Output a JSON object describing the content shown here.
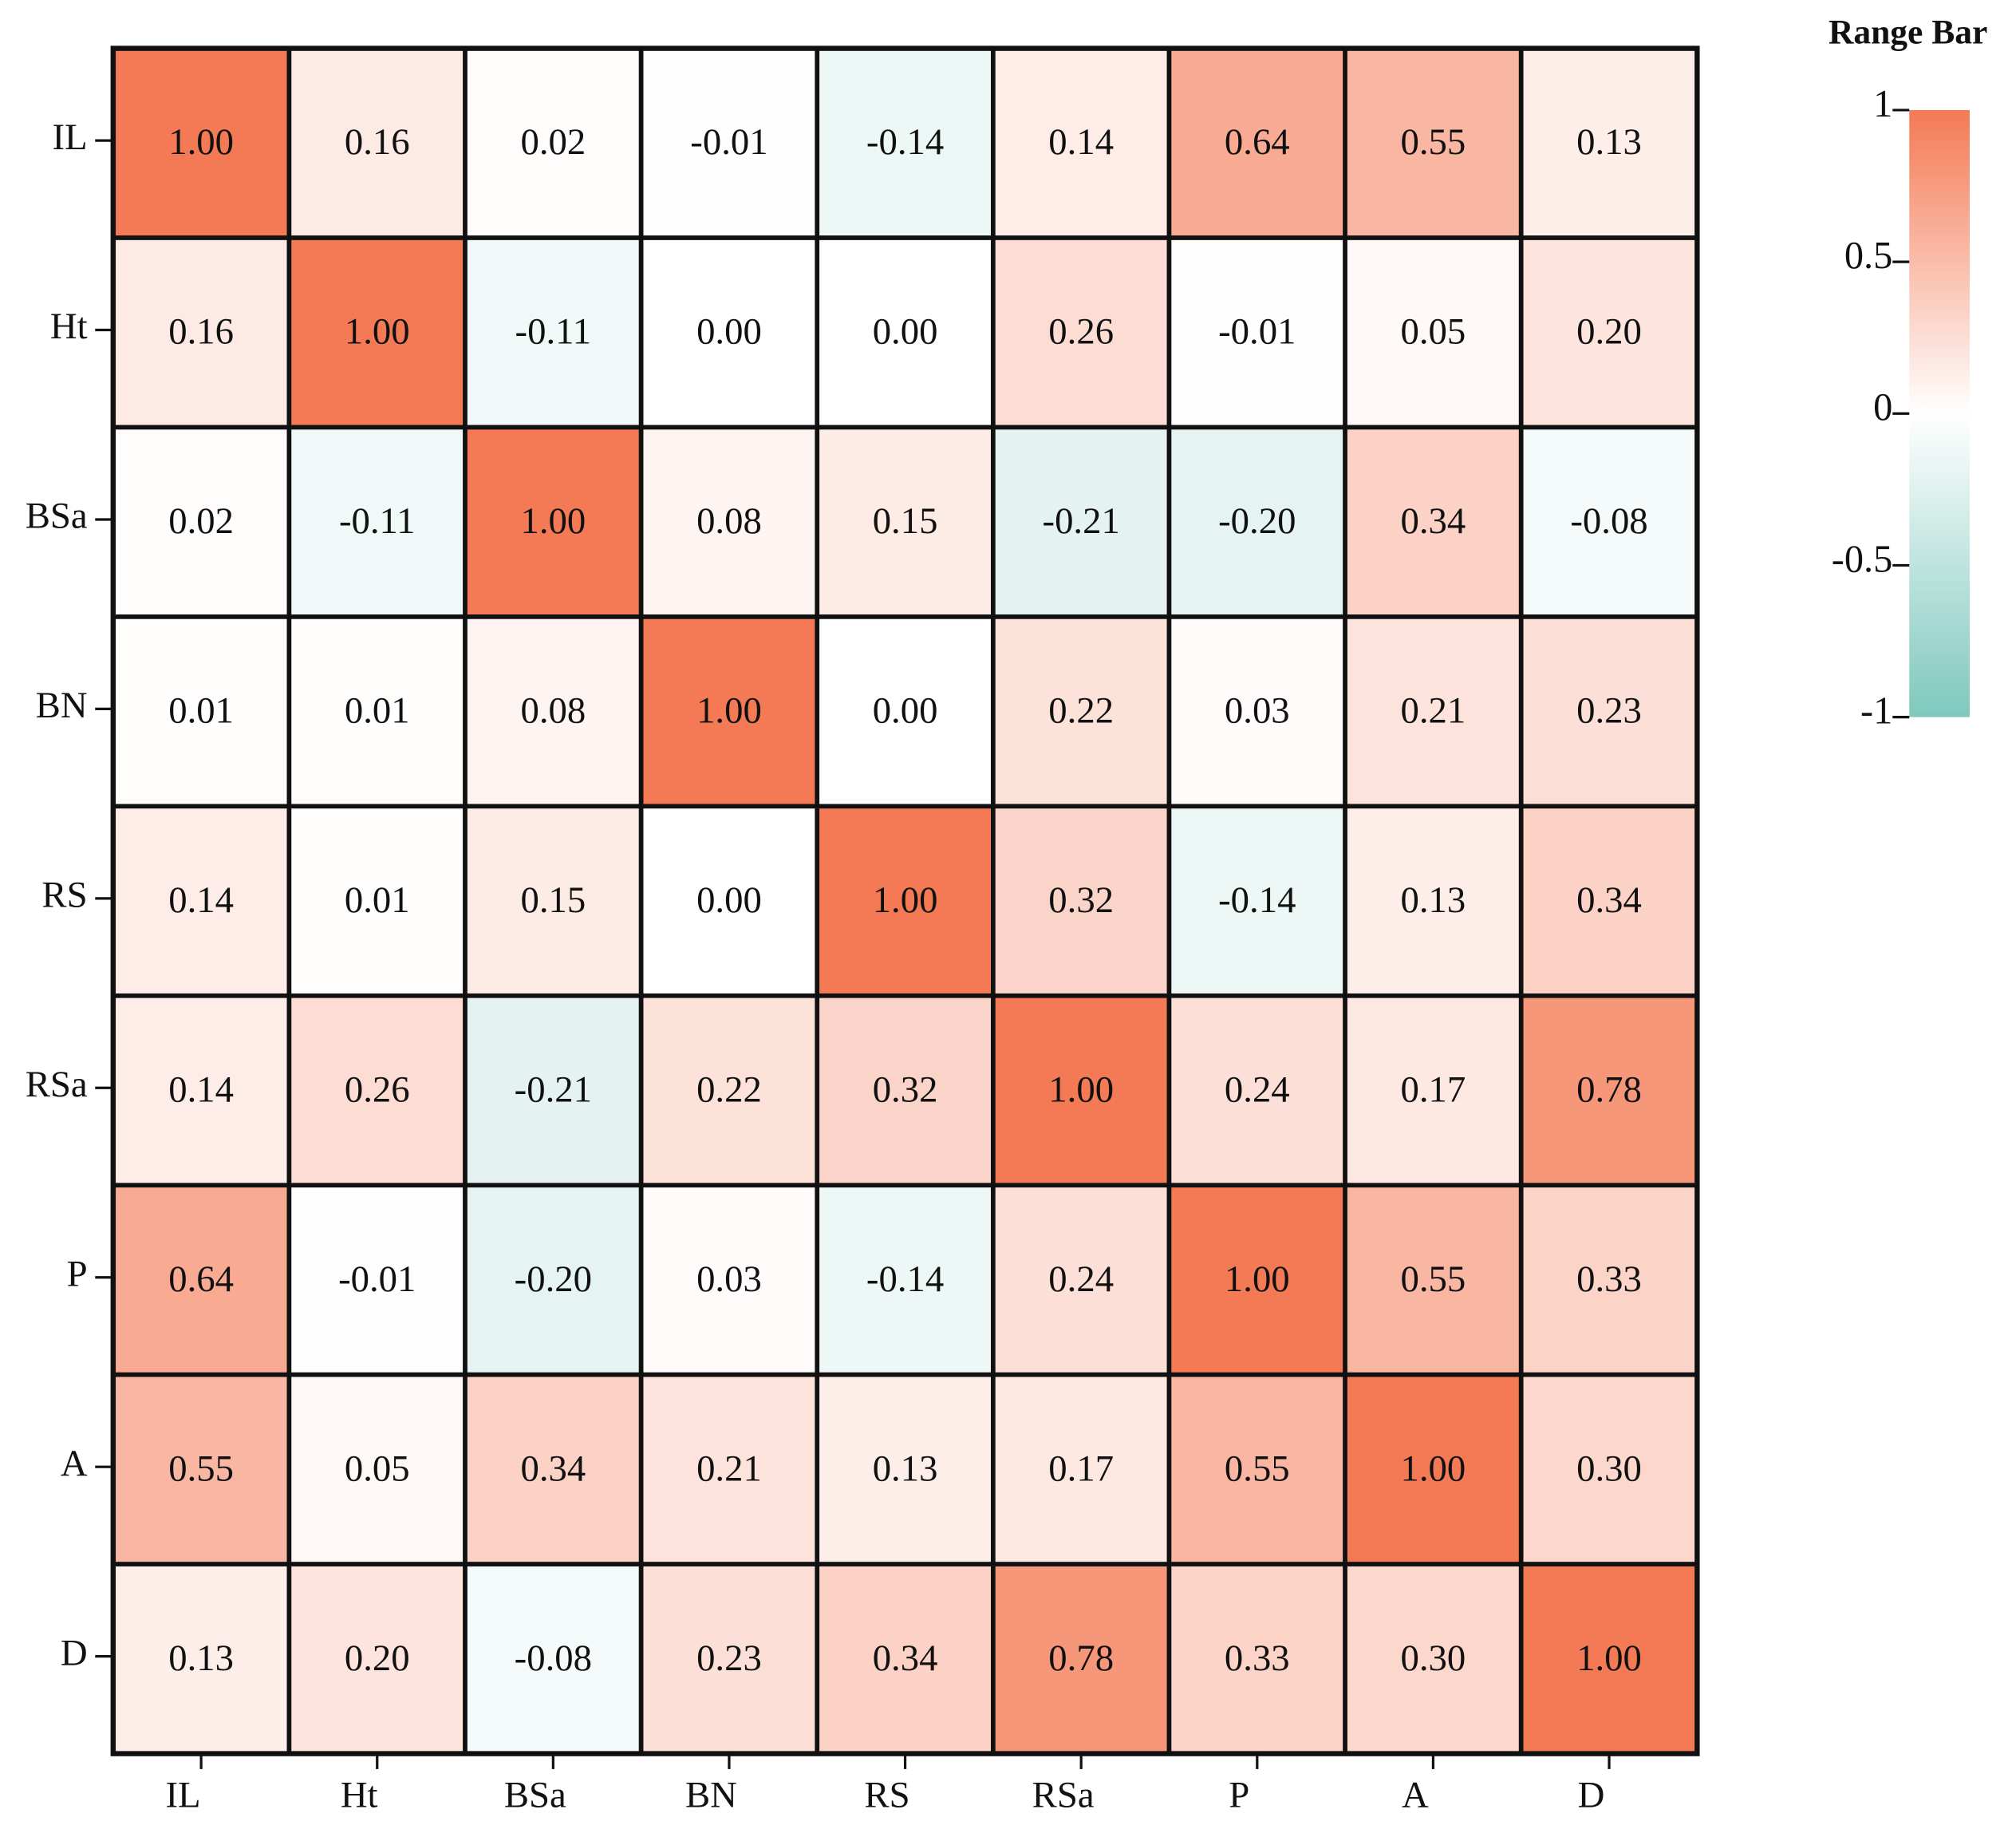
{
  "chart_data": {
    "type": "heatmap",
    "colorbar_title": "Range Bar",
    "x_categories": [
      "IL",
      "Ht",
      "BSa",
      "BN",
      "RS",
      "RSa",
      "P",
      "A",
      "D"
    ],
    "y_categories": [
      "IL",
      "Ht",
      "BSa",
      "BN",
      "RS",
      "RSa",
      "P",
      "A",
      "D"
    ],
    "values": [
      [
        1.0,
        0.16,
        0.02,
        -0.01,
        -0.14,
        0.14,
        0.64,
        0.55,
        0.13
      ],
      [
        0.16,
        1.0,
        -0.11,
        0.0,
        0.0,
        0.26,
        -0.01,
        0.05,
        0.2
      ],
      [
        0.02,
        -0.11,
        1.0,
        0.08,
        0.15,
        -0.21,
        -0.2,
        0.34,
        -0.08
      ],
      [
        0.01,
        0.01,
        0.08,
        1.0,
        0.0,
        0.22,
        0.03,
        0.21,
        0.23
      ],
      [
        0.14,
        0.01,
        0.15,
        0.0,
        1.0,
        0.32,
        -0.14,
        0.13,
        0.34
      ],
      [
        0.14,
        0.26,
        -0.21,
        0.22,
        0.32,
        1.0,
        0.24,
        0.17,
        0.78
      ],
      [
        0.64,
        -0.01,
        -0.2,
        0.03,
        -0.14,
        0.24,
        1.0,
        0.55,
        0.33
      ],
      [
        0.55,
        0.05,
        0.34,
        0.21,
        0.13,
        0.17,
        0.55,
        1.0,
        0.3
      ],
      [
        0.13,
        0.2,
        -0.08,
        0.23,
        0.34,
        0.78,
        0.33,
        0.3,
        1.0
      ]
    ],
    "value_labels": [
      [
        "1.00",
        "0.16",
        "0.02",
        "-0.01",
        "-0.14",
        "0.14",
        "0.64",
        "0.55",
        "0.13"
      ],
      [
        "0.16",
        "1.00",
        "-0.11",
        "0.00",
        "0.00",
        "0.26",
        "-0.01",
        "0.05",
        "0.20"
      ],
      [
        "0.02",
        "-0.11",
        "1.00",
        "0.08",
        "0.15",
        "-0.21",
        "-0.20",
        "0.34",
        "-0.08"
      ],
      [
        "0.01",
        "0.01",
        "0.08",
        "1.00",
        "0.00",
        "0.22",
        "0.03",
        "0.21",
        "0.23"
      ],
      [
        "0.14",
        "0.01",
        "0.15",
        "0.00",
        "1.00",
        "0.32",
        "-0.14",
        "0.13",
        "0.34"
      ],
      [
        "0.14",
        "0.26",
        "-0.21",
        "0.22",
        "0.32",
        "1.00",
        "0.24",
        "0.17",
        "0.78"
      ],
      [
        "0.64",
        "-0.01",
        "-0.20",
        "0.03",
        "-0.14",
        "0.24",
        "1.00",
        "0.55",
        "0.33"
      ],
      [
        "0.55",
        "0.05",
        "0.34",
        "0.21",
        "0.13",
        "0.17",
        "0.55",
        "1.00",
        "0.30"
      ],
      [
        "0.13",
        "0.20",
        "-0.08",
        "0.23",
        "0.34",
        "0.78",
        "0.33",
        "0.30",
        "1.00"
      ]
    ],
    "colormap": [
      "#7fc8bd",
      "#ffffff",
      "#f47a55"
    ],
    "zlim": [
      -1,
      1
    ],
    "colorbar_ticks": [
      -1,
      -0.5,
      0,
      0.5,
      1
    ]
  }
}
